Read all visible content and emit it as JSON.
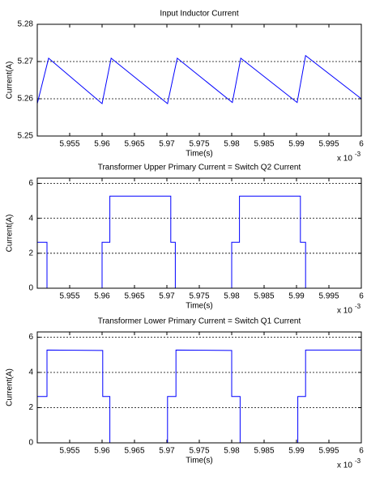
{
  "chart_data": [
    {
      "type": "line",
      "title": "Input Inductor Current",
      "xlabel": "Time(s)",
      "ylabel": "Current(A)",
      "x_multiplier": "x 10",
      "x_multiplier_exponent": "-3",
      "x": [
        5.95,
        5.95175,
        5.96,
        5.9614,
        5.9701,
        5.9716,
        5.9801,
        5.9814,
        5.9901,
        5.9914,
        6
      ],
      "values": [
        5.2587,
        5.2709,
        5.2587,
        5.2709,
        5.2587,
        5.2709,
        5.259,
        5.2709,
        5.259,
        5.2716,
        5.26
      ],
      "color": "#0000ff",
      "xlim": [
        5.95,
        6
      ],
      "xticks": [
        5.955,
        5.96,
        5.965,
        5.97,
        5.975,
        5.98,
        5.985,
        5.99,
        5.995,
        6
      ],
      "ylim": [
        5.25,
        5.28
      ],
      "yticks": [
        5.25,
        5.26,
        5.27,
        5.28
      ],
      "grid": "y"
    },
    {
      "type": "line",
      "title": "Transformer Upper Primary Current = Switch Q2 Current",
      "xlabel": "Time(s)",
      "ylabel": "Current(A)",
      "x_multiplier": "x 10",
      "x_multiplier_exponent": "-3",
      "x": [
        5.95,
        5.9515,
        5.9515,
        5.96,
        5.96,
        5.9612,
        5.9612,
        5.9706,
        5.9706,
        5.9713,
        5.9713,
        5.98,
        5.98,
        5.9812,
        5.9812,
        5.9906,
        5.9906,
        5.9914,
        5.9914,
        6
      ],
      "values": [
        2.63,
        2.63,
        0,
        0,
        2.63,
        2.63,
        5.27,
        5.27,
        2.63,
        2.63,
        0,
        0,
        2.63,
        2.63,
        5.27,
        5.27,
        2.63,
        2.63,
        0,
        0
      ],
      "color": "#0000ff",
      "xlim": [
        5.95,
        6
      ],
      "xticks": [
        5.955,
        5.96,
        5.965,
        5.97,
        5.975,
        5.98,
        5.985,
        5.99,
        5.995,
        6
      ],
      "ylim": [
        0,
        6.3
      ],
      "yticks": [
        0,
        2,
        4,
        6
      ],
      "grid": "y"
    },
    {
      "type": "line",
      "title": "Transformer Lower Primary Current = Switch Q1 Current",
      "xlabel": "Time(s)",
      "ylabel": "Current(A)",
      "x_multiplier": "x 10",
      "x_multiplier_exponent": "-3",
      "x": [
        5.95,
        5.95,
        5.9515,
        5.9515,
        5.9601,
        5.9601,
        5.9612,
        5.9612,
        5.9701,
        5.9701,
        5.9714,
        5.9714,
        5.98,
        5.98,
        5.9813,
        5.9813,
        5.9902,
        5.9902,
        5.9914,
        5.9914,
        6
      ],
      "values": [
        0,
        2.63,
        2.63,
        5.27,
        5.25,
        2.63,
        2.63,
        0,
        0,
        2.63,
        2.63,
        5.27,
        5.25,
        2.63,
        2.63,
        0,
        0,
        2.63,
        2.63,
        5.27,
        5.27
      ],
      "color": "#0000ff",
      "xlim": [
        5.95,
        6
      ],
      "xticks": [
        5.955,
        5.96,
        5.965,
        5.97,
        5.975,
        5.98,
        5.985,
        5.99,
        5.995,
        6
      ],
      "ylim": [
        0,
        6.3
      ],
      "yticks": [
        0,
        2,
        4,
        6
      ],
      "grid": "y"
    }
  ]
}
